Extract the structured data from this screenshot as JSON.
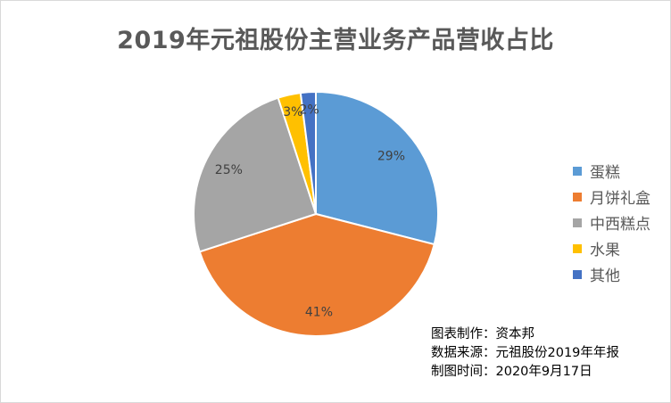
{
  "chart_data": {
    "type": "pie",
    "title": "2019年元祖股份主营业务产品营收占比",
    "categories": [
      "蛋糕",
      "月饼礼盒",
      "中西糕点",
      "水果",
      "其他"
    ],
    "values": [
      29,
      41,
      25,
      3,
      2
    ],
    "data_labels": [
      "29%",
      "41%",
      "25%",
      "3%",
      "2%"
    ],
    "colors": [
      "#5b9bd5",
      "#ed7d31",
      "#a5a5a5",
      "#ffc000",
      "#4472c4"
    ],
    "legend_position": "right"
  },
  "notes": {
    "author": "图表制作：资本邦",
    "source": "数据来源：元祖股份2019年年报",
    "date": "制图时间：2020年9月17日"
  }
}
